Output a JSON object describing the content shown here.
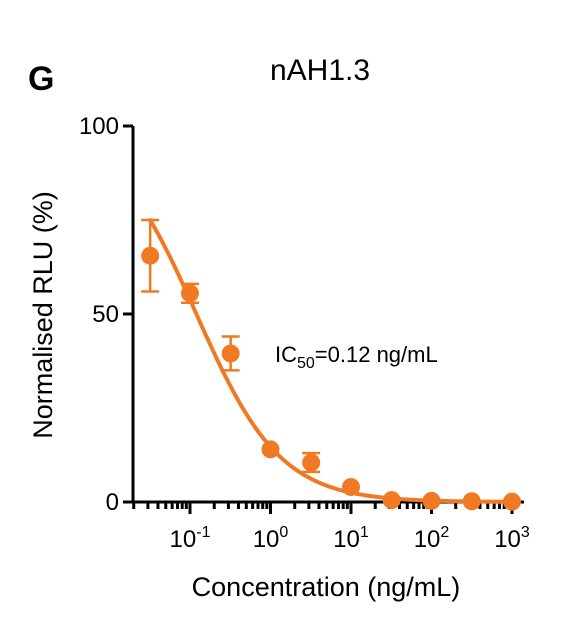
{
  "panel_letter": "G",
  "chart_data": {
    "type": "scatter",
    "title": "nAH1.3",
    "xlabel": "Concentration (ng/mL)",
    "ylabel": "Normalised RLU (%)",
    "x_scale": "log",
    "xlim": [
      0.02,
      1000
    ],
    "ylim": [
      0,
      100
    ],
    "x_ticks": [
      {
        "value": 0.1,
        "base": "10",
        "exp": "-1"
      },
      {
        "value": 1,
        "base": "10",
        "exp": "0"
      },
      {
        "value": 10,
        "base": "10",
        "exp": "1"
      },
      {
        "value": 100,
        "base": "10",
        "exp": "2"
      },
      {
        "value": 1000,
        "base": "10",
        "exp": "3"
      }
    ],
    "y_ticks": [
      "0",
      "50",
      "100"
    ],
    "color": "#F07A24",
    "grid": false,
    "points": [
      {
        "x": 0.032,
        "y": 65.5,
        "err": 9.5
      },
      {
        "x": 0.1,
        "y": 55.5,
        "err": 2.5
      },
      {
        "x": 0.32,
        "y": 39.5,
        "err": 4.5
      },
      {
        "x": 1,
        "y": 14.0,
        "err": 0
      },
      {
        "x": 3.2,
        "y": 10.5,
        "err": 2.5
      },
      {
        "x": 10,
        "y": 4.0,
        "err": 0
      },
      {
        "x": 32,
        "y": 0.5,
        "err": 0
      },
      {
        "x": 100,
        "y": 0.3,
        "err": 0
      },
      {
        "x": 316,
        "y": 0.2,
        "err": 0
      },
      {
        "x": 1000,
        "y": 0.1,
        "err": 0
      }
    ],
    "fit": {
      "type": "sigmoid",
      "ic50": 0.12,
      "top": 100,
      "bottom": 0,
      "hill": 0.83
    },
    "annotation": {
      "prefix": "IC",
      "subscript": "50",
      "suffix": "=0.12 ng/mL"
    }
  }
}
